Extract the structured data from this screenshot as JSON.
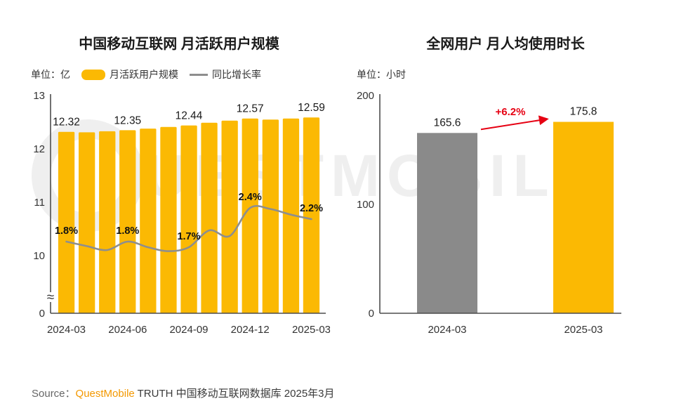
{
  "charts": {
    "left": {
      "title": "中国移动互联网 月活跃用户规模",
      "unit_label": "单位：亿",
      "legend_bar_label": "月活跃用户规模",
      "legend_line_label": "同比增长率"
    },
    "right": {
      "title": "全网用户 月人均使用时长",
      "unit_label": "单位：小时"
    }
  },
  "chart_data": [
    {
      "type": "bar",
      "title": "中国移动互联网 月活跃用户规模",
      "unit": "亿",
      "x_tick_labels": [
        "2024-03",
        "2024-06",
        "2024-09",
        "2024-12",
        "2025-03"
      ],
      "y_ticks": [
        0,
        10,
        11,
        12,
        13
      ],
      "ylim_note": "axis break between 0 and 10",
      "axis_break_symbol": "≈",
      "bar_series": {
        "name": "月活跃用户规模",
        "color": "#FBB903",
        "values": [
          12.32,
          12.31,
          12.33,
          12.35,
          12.38,
          12.41,
          12.44,
          12.49,
          12.53,
          12.57,
          12.55,
          12.57,
          12.59
        ],
        "labeled_points": [
          {
            "index": 0,
            "label": "12.32"
          },
          {
            "index": 3,
            "label": "12.35"
          },
          {
            "index": 6,
            "label": "12.44"
          },
          {
            "index": 9,
            "label": "12.57"
          },
          {
            "index": 12,
            "label": "12.59"
          }
        ]
      },
      "line_series": {
        "name": "同比增长率",
        "color": "#8E8E8E",
        "values_pct": [
          1.8,
          1.72,
          1.65,
          1.8,
          1.7,
          1.63,
          1.7,
          2.0,
          1.9,
          2.4,
          2.38,
          2.28,
          2.2
        ],
        "labeled_points": [
          {
            "index": 0,
            "label": "1.8%"
          },
          {
            "index": 3,
            "label": "1.8%"
          },
          {
            "index": 6,
            "label": "1.7%"
          },
          {
            "index": 9,
            "label": "2.4%"
          },
          {
            "index": 12,
            "label": "2.2%"
          }
        ]
      }
    },
    {
      "type": "bar",
      "title": "全网用户 月人均使用时长",
      "unit": "小时",
      "categories": [
        "2024-03",
        "2025-03"
      ],
      "values": [
        165.6,
        175.8
      ],
      "value_labels": [
        "165.6",
        "175.8"
      ],
      "bar_colors": [
        "#8A8A8A",
        "#FBB903"
      ],
      "y_ticks": [
        0,
        100,
        200
      ],
      "ylim": [
        0,
        200
      ],
      "change_annotation": {
        "label": "+6.2%",
        "color": "#E60012"
      }
    }
  ],
  "watermark": {
    "brand": "QuestMobile",
    "letters": "UESTMOBILE"
  },
  "footer": {
    "source_prefix": "Source：",
    "brand": "QuestMobile",
    "rest": " TRUTH 中国移动互联网数据库 2025年3月"
  }
}
